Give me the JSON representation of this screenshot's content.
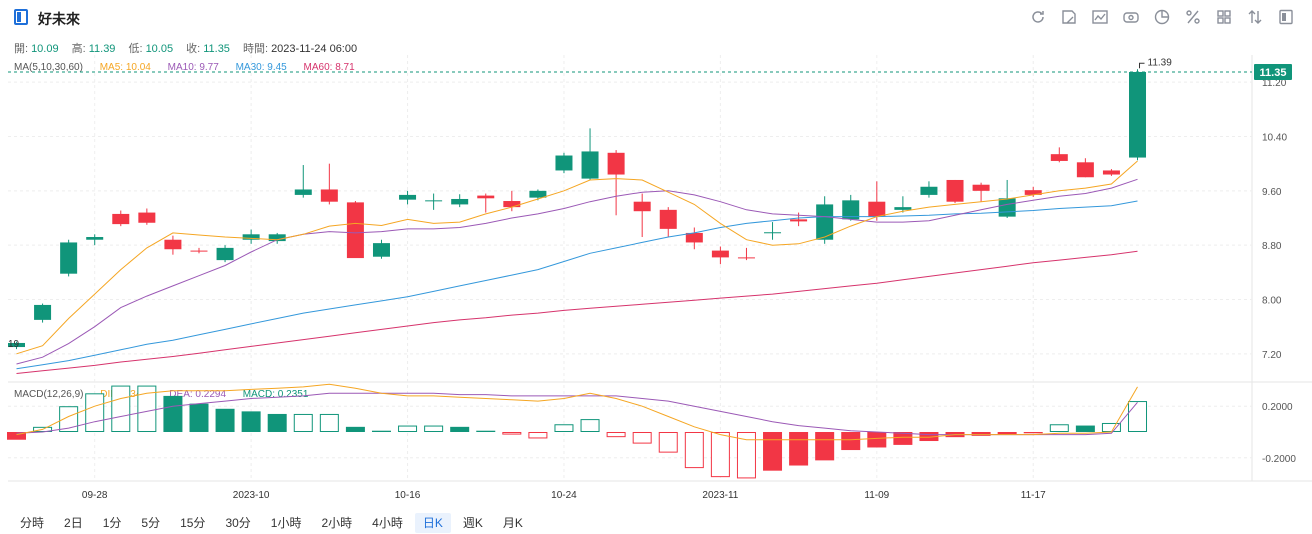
{
  "header": {
    "title": "好未來",
    "tools": [
      "refresh-icon",
      "draw-icon",
      "indicator-icon",
      "compare-icon",
      "pie-icon",
      "percent-icon",
      "grid-icon",
      "sort-icon",
      "fullscreen-icon"
    ]
  },
  "ohlc": {
    "open_label": "開:",
    "open": "10.09",
    "high_label": "高:",
    "high": "11.39",
    "low_label": "低:",
    "low": "10.05",
    "close_label": "收:",
    "close": "11.35",
    "time_label": "時間:",
    "time": "2023-11-24 06:00"
  },
  "ma": {
    "title": "MA(5,10,30,60)",
    "ma5": "MA5: 10.04",
    "ma10": "MA10: 9.77",
    "ma30": "MA30: 9.45",
    "ma60": "MA60: 8.71"
  },
  "macd": {
    "title": "MACD(12,26,9)",
    "dif": "DIF: 0.3469",
    "dea": "DEA: 0.2294",
    "macd": "MACD: 0.2351"
  },
  "price_tag": "11.35",
  "high_marker": "11.39",
  "left_marker": "19",
  "tabs": [
    {
      "label": "分時",
      "active": false
    },
    {
      "label": "2日",
      "active": false
    },
    {
      "label": "1分",
      "active": false
    },
    {
      "label": "5分",
      "active": false
    },
    {
      "label": "15分",
      "active": false
    },
    {
      "label": "30分",
      "active": false
    },
    {
      "label": "1小時",
      "active": false
    },
    {
      "label": "2小時",
      "active": false
    },
    {
      "label": "4小時",
      "active": false
    },
    {
      "label": "日K",
      "active": true
    },
    {
      "label": "週K",
      "active": false
    },
    {
      "label": "月K",
      "active": false
    }
  ],
  "colors": {
    "up": "#10957a",
    "down": "#f23645",
    "ma5": "#f5a623",
    "ma10": "#9b59b6",
    "ma30": "#3498db",
    "ma60": "#d6336c",
    "dashed": "#10957a"
  },
  "chart_data": {
    "type": "candlestick",
    "price_axis": {
      "ticks": [
        7.2,
        8.0,
        8.8,
        9.6,
        10.4,
        11.2
      ],
      "tick_labels": [
        "7.20",
        "8.00",
        "8.80",
        "9.60",
        "10.40",
        "11.20"
      ],
      "range": [
        6.8,
        11.6
      ]
    },
    "macd_axis": {
      "ticks": [
        0.2,
        -0.2
      ],
      "tick_labels": [
        "0.2000",
        "-0.2000"
      ],
      "range": [
        -0.38,
        0.38
      ]
    },
    "x_ticks": [
      {
        "index": 3,
        "label": "09-28"
      },
      {
        "index": 9,
        "label": "2023-10"
      },
      {
        "index": 15,
        "label": "10-16"
      },
      {
        "index": 21,
        "label": "10-24"
      },
      {
        "index": 27,
        "label": "2023-11"
      },
      {
        "index": 33,
        "label": "11-09"
      },
      {
        "index": 39,
        "label": "11-17"
      }
    ],
    "candles": [
      [
        7.3,
        7.38,
        7.27,
        7.36
      ],
      [
        7.7,
        7.94,
        7.66,
        7.92
      ],
      [
        8.38,
        8.88,
        8.34,
        8.84
      ],
      [
        8.88,
        8.96,
        8.8,
        8.92
      ],
      [
        9.26,
        9.31,
        9.08,
        9.11
      ],
      [
        9.28,
        9.34,
        9.1,
        9.13
      ],
      [
        8.88,
        8.94,
        8.66,
        8.74
      ],
      [
        8.72,
        8.76,
        8.68,
        8.71
      ],
      [
        8.58,
        8.8,
        8.55,
        8.76
      ],
      [
        8.88,
        9.03,
        8.82,
        8.96
      ],
      [
        8.86,
        8.98,
        8.82,
        8.96
      ],
      [
        9.54,
        9.98,
        9.5,
        9.62
      ],
      [
        9.62,
        10.0,
        9.4,
        9.44
      ],
      [
        9.43,
        9.45,
        8.64,
        8.61
      ],
      [
        8.63,
        8.88,
        8.6,
        8.83
      ],
      [
        9.47,
        9.6,
        9.4,
        9.54
      ],
      [
        9.46,
        9.56,
        9.32,
        9.46
      ],
      [
        9.4,
        9.55,
        9.36,
        9.48
      ],
      [
        9.53,
        9.56,
        9.28,
        9.49
      ],
      [
        9.45,
        9.6,
        9.3,
        9.36
      ],
      [
        9.5,
        9.62,
        9.46,
        9.6
      ],
      [
        9.9,
        10.16,
        9.86,
        10.12
      ],
      [
        9.78,
        10.52,
        9.76,
        10.18
      ],
      [
        10.16,
        10.2,
        9.24,
        9.84
      ],
      [
        9.44,
        9.56,
        8.92,
        9.3
      ],
      [
        9.32,
        9.36,
        8.92,
        9.04
      ],
      [
        8.98,
        9.06,
        8.74,
        8.84
      ],
      [
        8.72,
        8.78,
        8.52,
        8.62
      ],
      [
        8.62,
        8.76,
        8.58,
        8.61
      ],
      [
        8.98,
        9.14,
        8.88,
        8.99
      ],
      [
        9.18,
        9.28,
        9.08,
        9.15
      ],
      [
        8.88,
        9.52,
        8.82,
        9.4
      ],
      [
        9.18,
        9.54,
        9.16,
        9.46
      ],
      [
        9.44,
        9.74,
        9.16,
        9.22
      ],
      [
        9.32,
        9.52,
        9.28,
        9.36
      ],
      [
        9.54,
        9.74,
        9.5,
        9.66
      ],
      [
        9.76,
        9.76,
        9.42,
        9.44
      ],
      [
        9.69,
        9.72,
        9.44,
        9.6
      ],
      [
        9.22,
        9.76,
        9.2,
        9.49
      ],
      [
        9.61,
        9.66,
        9.51,
        9.54
      ],
      [
        10.14,
        10.24,
        10.02,
        10.04
      ],
      [
        10.02,
        10.08,
        9.8,
        9.8
      ],
      [
        9.9,
        9.92,
        9.82,
        9.84
      ],
      [
        10.09,
        11.39,
        10.05,
        11.35
      ]
    ],
    "ma5": [
      7.2,
      7.32,
      7.72,
      8.08,
      8.44,
      8.76,
      8.98,
      8.95,
      8.92,
      8.9,
      8.88,
      8.96,
      9.08,
      9.12,
      9.09,
      9.18,
      9.12,
      9.14,
      9.26,
      9.36,
      9.48,
      9.6,
      9.76,
      9.78,
      9.76,
      9.58,
      9.4,
      9.12,
      8.88,
      8.8,
      8.82,
      8.92,
      9.08,
      9.22,
      9.3,
      9.36,
      9.4,
      9.44,
      9.48,
      9.54,
      9.6,
      9.64,
      9.7,
      10.04
    ],
    "ma10": [
      7.05,
      7.15,
      7.35,
      7.6,
      7.88,
      8.05,
      8.2,
      8.35,
      8.5,
      8.7,
      8.88,
      8.96,
      9.0,
      8.98,
      9.0,
      9.04,
      9.04,
      9.06,
      9.12,
      9.2,
      9.26,
      9.34,
      9.44,
      9.52,
      9.58,
      9.6,
      9.54,
      9.44,
      9.32,
      9.26,
      9.24,
      9.22,
      9.18,
      9.14,
      9.14,
      9.16,
      9.24,
      9.32,
      9.4,
      9.46,
      9.52,
      9.56,
      9.64,
      9.77
    ],
    "ma30": [
      6.98,
      7.04,
      7.1,
      7.18,
      7.26,
      7.34,
      7.4,
      7.48,
      7.56,
      7.64,
      7.72,
      7.8,
      7.86,
      7.92,
      7.98,
      8.04,
      8.12,
      8.2,
      8.28,
      8.36,
      8.44,
      8.56,
      8.68,
      8.76,
      8.84,
      8.92,
      8.98,
      9.06,
      9.12,
      9.16,
      9.2,
      9.22,
      9.22,
      9.22,
      9.23,
      9.24,
      9.26,
      9.27,
      9.29,
      9.31,
      9.34,
      9.36,
      9.38,
      9.45
    ],
    "ma60": [
      6.91,
      6.95,
      6.99,
      7.03,
      7.08,
      7.12,
      7.16,
      7.21,
      7.26,
      7.31,
      7.36,
      7.41,
      7.46,
      7.51,
      7.56,
      7.61,
      7.66,
      7.7,
      7.73,
      7.77,
      7.8,
      7.84,
      7.87,
      7.9,
      7.93,
      7.96,
      7.99,
      8.02,
      8.05,
      8.08,
      8.12,
      8.16,
      8.2,
      8.24,
      8.29,
      8.34,
      8.39,
      8.44,
      8.49,
      8.54,
      8.58,
      8.62,
      8.66,
      8.71
    ],
    "dif": [
      -0.02,
      0.02,
      0.12,
      0.2,
      0.26,
      0.3,
      0.32,
      0.32,
      0.32,
      0.33,
      0.34,
      0.35,
      0.37,
      0.34,
      0.3,
      0.28,
      0.28,
      0.27,
      0.26,
      0.25,
      0.24,
      0.26,
      0.3,
      0.26,
      0.2,
      0.12,
      0.04,
      -0.02,
      -0.06,
      -0.06,
      -0.06,
      -0.06,
      -0.06,
      -0.05,
      -0.04,
      -0.04,
      -0.02,
      -0.02,
      -0.02,
      -0.02,
      -0.01,
      -0.01,
      0.0,
      0.35
    ],
    "dea": [
      -0.01,
      0.0,
      0.03,
      0.08,
      0.12,
      0.16,
      0.2,
      0.22,
      0.24,
      0.26,
      0.27,
      0.28,
      0.3,
      0.3,
      0.3,
      0.3,
      0.3,
      0.29,
      0.29,
      0.28,
      0.28,
      0.28,
      0.28,
      0.28,
      0.26,
      0.24,
      0.2,
      0.16,
      0.12,
      0.08,
      0.05,
      0.03,
      0.01,
      0.0,
      -0.01,
      -0.02,
      -0.02,
      -0.02,
      -0.02,
      -0.02,
      -0.02,
      -0.02,
      -0.01,
      0.23
    ],
    "macd_hist": [
      -0.06,
      0.04,
      0.2,
      0.3,
      0.36,
      0.36,
      0.28,
      0.22,
      0.18,
      0.16,
      0.14,
      0.14,
      0.14,
      0.04,
      0.01,
      0.05,
      0.05,
      0.04,
      0.01,
      -0.02,
      -0.05,
      0.06,
      0.1,
      -0.04,
      -0.09,
      -0.16,
      -0.28,
      -0.35,
      -0.36,
      -0.3,
      -0.26,
      -0.22,
      -0.14,
      -0.12,
      -0.1,
      -0.07,
      -0.04,
      -0.03,
      -0.02,
      -0.01,
      0.06,
      0.05,
      0.07,
      0.24
    ]
  }
}
